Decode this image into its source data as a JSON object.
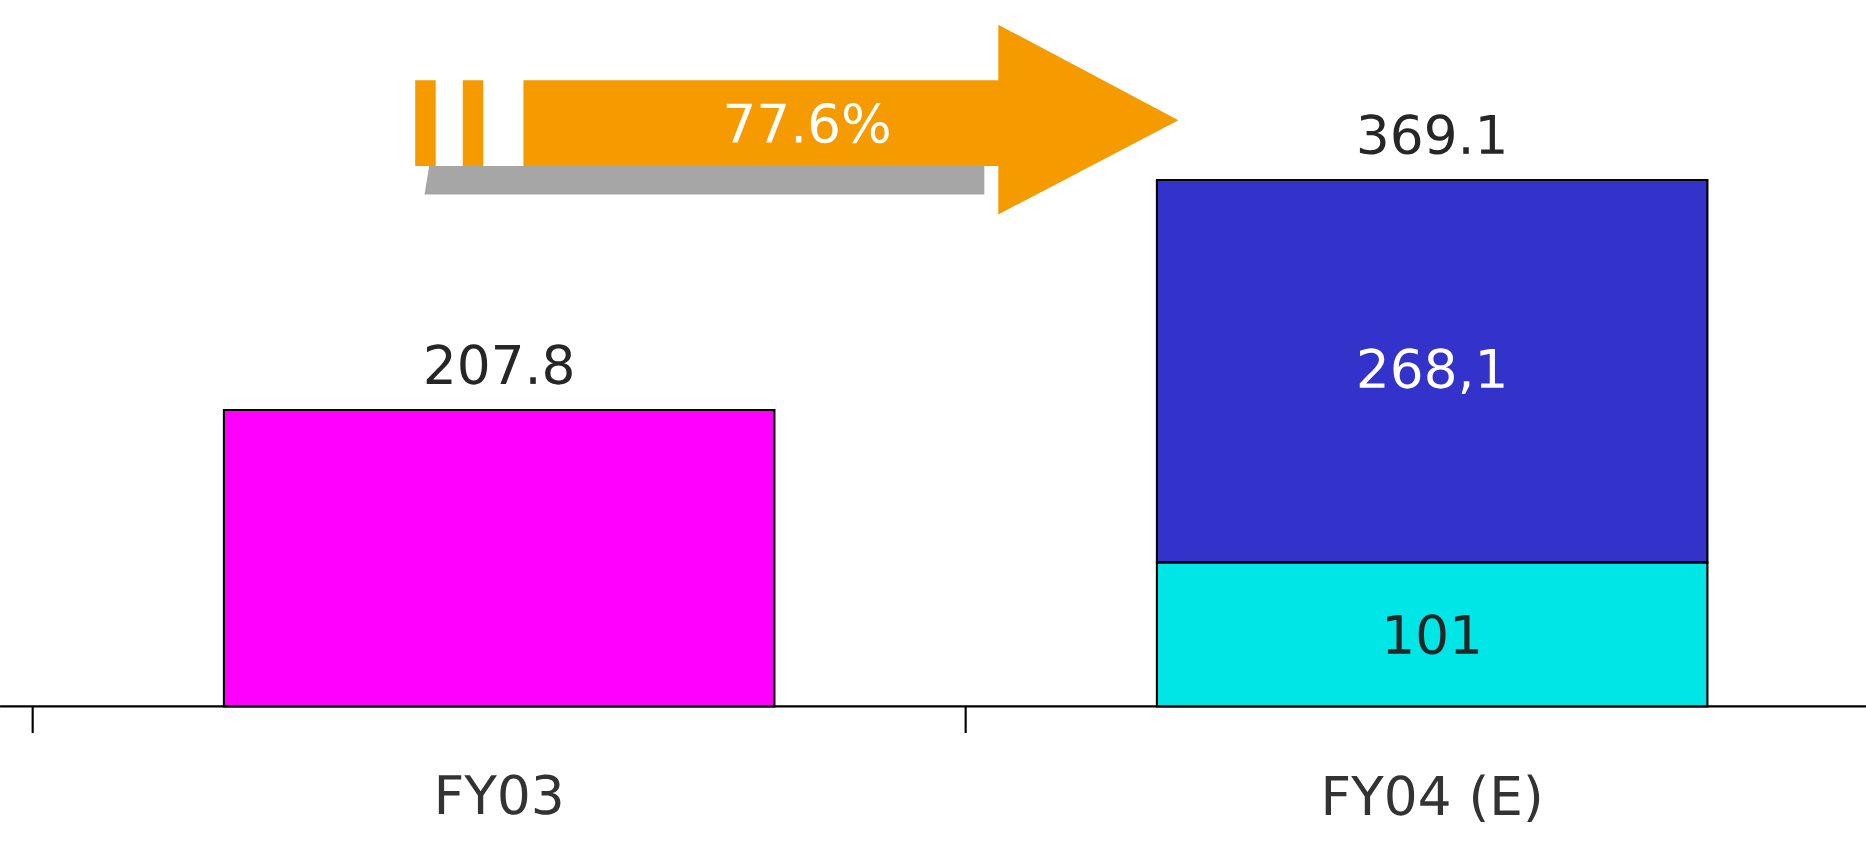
{
  "chart_data": {
    "type": "bar",
    "stacked": true,
    "categories": [
      "FY03",
      "FY04 (E)"
    ],
    "series": [
      {
        "colors": [
          "#ff00ff",
          "#00e6e6"
        ],
        "values": [
          207.8,
          101
        ],
        "value_labels": [
          null,
          "101"
        ]
      },
      {
        "color": "#3333cc",
        "values": [
          null,
          268.1
        ],
        "value_labels": [
          null,
          "268,1"
        ]
      }
    ],
    "totals": [
      "207.8",
      "369.1"
    ],
    "annotations": [
      "77.6%"
    ]
  }
}
